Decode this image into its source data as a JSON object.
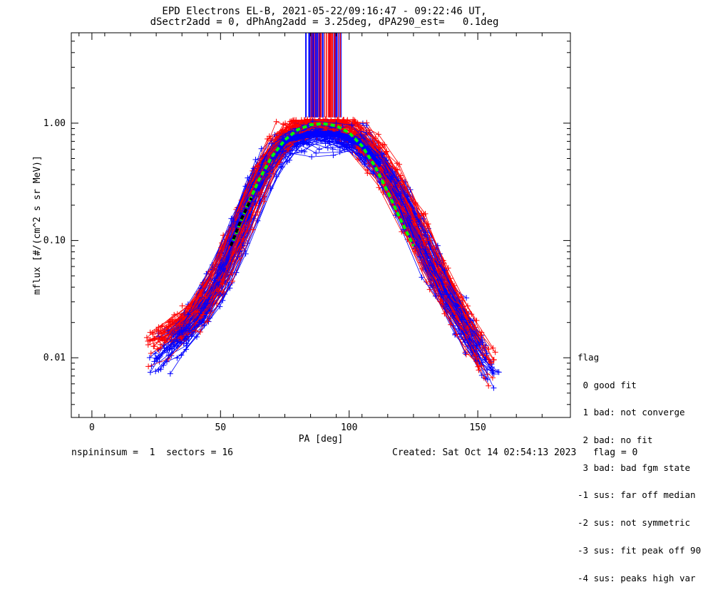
{
  "header": {
    "title_line1": "EPD Electrons EL-B, 2021-05-22/09:16:47 - 09:22:46 UT,",
    "title_line2": "dSectr2add = 0, dPhAng2add = 3.25deg, dPA290_est=   0.1deg"
  },
  "footer": {
    "left": "nspininsum =  1  sectors = 16",
    "right": "Created: Sat Oct 14 02:54:13 2023   flag = 0"
  },
  "legend": {
    "title": "flag",
    "entries": [
      " 0 good fit",
      " 1 bad: not converge",
      " 2 bad: no fit",
      " 3 bad: bad fgm state",
      "-1 sus: far off median",
      "-2 sus: not symmetric",
      "-3 sus: fit peak off 90",
      "-4 sus: peaks high var"
    ]
  },
  "colors": {
    "series_red": "#ff0000",
    "series_blue": "#0000ff",
    "fit_green": "#00ff00",
    "fit_black": "#000000"
  },
  "chart_data": {
    "type": "line",
    "xlabel": "PA [deg]",
    "ylabel": "mflux [#/(cm^2 s sr MeV)]",
    "xlim": [
      -8,
      186
    ],
    "ylim": [
      0.0031,
      5.9
    ],
    "yscale": "log",
    "x_ticks": [
      0,
      50,
      100,
      150
    ],
    "x_tick_labels": [
      "0",
      "50",
      "100",
      "150"
    ],
    "y_ticks": [
      0.01,
      0.1,
      1.0
    ],
    "y_tick_labels": [
      "0.01",
      "0.10",
      "1.00"
    ],
    "series": [
      {
        "color": "red",
        "description": "red traces",
        "x": [
          22,
          30,
          40,
          50,
          58,
          66,
          75,
          84,
          90,
          96,
          105,
          115,
          125,
          135,
          145,
          156
        ],
        "y": [
          0.012,
          0.016,
          0.022,
          0.045,
          0.13,
          0.35,
          0.8,
          1.02,
          1.03,
          1.0,
          0.78,
          0.4,
          0.15,
          0.05,
          0.02,
          0.008
        ]
      },
      {
        "color": "blue",
        "description": "blue traces",
        "x": [
          23,
          30,
          40,
          50,
          58,
          66,
          75,
          84,
          90,
          96,
          105,
          115,
          125,
          135,
          145,
          157
        ],
        "y": [
          0.009,
          0.013,
          0.02,
          0.05,
          0.14,
          0.38,
          0.72,
          0.8,
          0.82,
          0.8,
          0.66,
          0.38,
          0.13,
          0.045,
          0.018,
          0.007
        ]
      },
      {
        "color": "green",
        "description": "dashed fit",
        "x": [
          55,
          60,
          65,
          70,
          75,
          80,
          85,
          90,
          95,
          100,
          105,
          110,
          115,
          120,
          125
        ],
        "y": [
          0.1,
          0.19,
          0.33,
          0.52,
          0.72,
          0.88,
          0.97,
          0.99,
          0.95,
          0.83,
          0.64,
          0.43,
          0.26,
          0.15,
          0.09
        ]
      },
      {
        "color": "black",
        "description": "dashed fit segment",
        "x": [
          54,
          58,
          62
        ],
        "y": [
          0.09,
          0.15,
          0.23
        ]
      }
    ]
  }
}
